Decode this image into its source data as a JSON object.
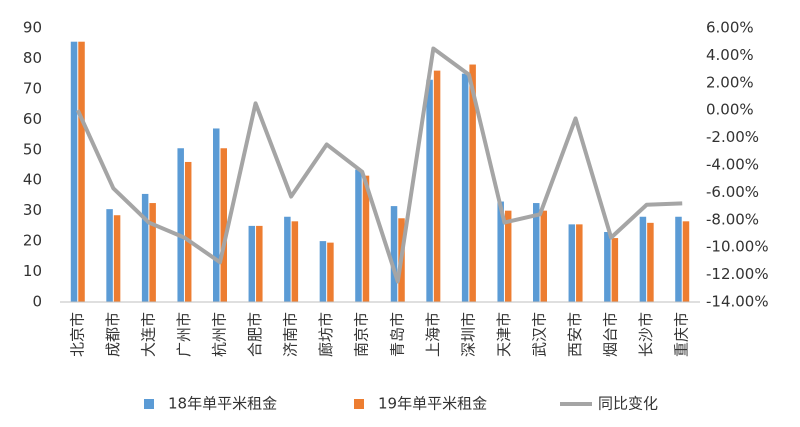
{
  "chart_data": {
    "type": "bar",
    "categories": [
      "北京市",
      "成都市",
      "大连市",
      "广州市",
      "杭州市",
      "合肥市",
      "济南市",
      "廊坊市",
      "南京市",
      "青岛市",
      "上海市",
      "深圳市",
      "天津市",
      "武汉市",
      "西安市",
      "烟台市",
      "长沙市",
      "重庆市"
    ],
    "series": [
      {
        "name": "18年单平米租金",
        "color": "#5b9bd5",
        "values": [
          85.5,
          30.5,
          35.5,
          50.5,
          57,
          25,
          28,
          20,
          43.5,
          31.5,
          73,
          75,
          33,
          32.5,
          25.5,
          23,
          28,
          28
        ]
      },
      {
        "name": "19年单平米租金",
        "color": "#ed7d31",
        "values": [
          85.5,
          28.5,
          32.5,
          46,
          50.5,
          25,
          26.5,
          19.5,
          41.5,
          27.5,
          76,
          78,
          30,
          30,
          25.5,
          21,
          26,
          26.5
        ]
      },
      {
        "name": "同比变化",
        "color": "#a5a5a5",
        "type": "line",
        "axis": "y2",
        "values": [
          0.0,
          -5.7,
          -8.2,
          -9.3,
          -11.1,
          0.5,
          -6.3,
          -2.5,
          -4.5,
          -12.5,
          4.5,
          2.6,
          -8.2,
          -7.6,
          -0.6,
          -9.3,
          -6.9,
          -6.8
        ]
      }
    ],
    "ylim": [
      0,
      90
    ],
    "yticks": [
      0,
      10,
      20,
      30,
      40,
      50,
      60,
      70,
      80,
      90
    ],
    "y2lim": [
      -14,
      6
    ],
    "y2ticks": [
      {
        "value": 6,
        "label": "6.00%"
      },
      {
        "value": 4,
        "label": "4.00%"
      },
      {
        "value": 2,
        "label": "2.00%"
      },
      {
        "value": 0,
        "label": "0.00%"
      },
      {
        "value": -2,
        "label": "-2.00%"
      },
      {
        "value": -4,
        "label": "-4.00%"
      },
      {
        "value": -6,
        "label": "-6.00%"
      },
      {
        "value": -8,
        "label": "-8.00%"
      },
      {
        "value": -10,
        "label": "-10.00%"
      },
      {
        "value": -12,
        "label": "-12.00%"
      },
      {
        "value": -14,
        "label": "-14.00%"
      }
    ],
    "grid": false,
    "legend": "bottom"
  }
}
